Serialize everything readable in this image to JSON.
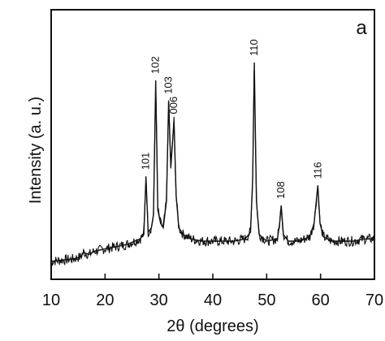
{
  "chart_data": {
    "type": "line",
    "panel_label": "a",
    "xlabel": "2θ (degrees)",
    "ylabel": "Intensity (a. u.)",
    "xlim": [
      10,
      70
    ],
    "ylim": [
      0,
      100
    ],
    "x_ticks": [
      10,
      20,
      30,
      40,
      50,
      60,
      70
    ],
    "x_tick_labels": [
      "10",
      "20",
      "30",
      "40",
      "50",
      "60",
      "70"
    ],
    "y_ticks_shown": false,
    "grid": false,
    "line_color": "#111111",
    "peaks": [
      {
        "x": 27.6,
        "y": 41,
        "label": "101"
      },
      {
        "x": 29.4,
        "y": 84,
        "label": "102"
      },
      {
        "x": 31.8,
        "y": 75,
        "label": "103"
      },
      {
        "x": 32.8,
        "y": 66,
        "label": "006"
      },
      {
        "x": 47.7,
        "y": 92,
        "label": "110"
      },
      {
        "x": 52.7,
        "y": 28,
        "label": "108"
      },
      {
        "x": 59.5,
        "y": 37,
        "label": "116"
      }
    ],
    "series": [
      {
        "values_xy": [
          [
            10,
            3
          ],
          [
            12,
            3.5
          ],
          [
            14,
            4
          ],
          [
            15.5,
            5
          ],
          [
            16,
            7
          ],
          [
            17,
            6
          ],
          [
            18,
            7.5
          ],
          [
            20,
            8.5
          ],
          [
            22,
            9.5
          ],
          [
            24,
            10.5
          ],
          [
            25.5,
            12
          ],
          [
            26.5,
            13
          ],
          [
            27.2,
            15
          ],
          [
            27.6,
            41
          ],
          [
            28.0,
            16
          ],
          [
            28.6,
            18
          ],
          [
            29.0,
            24
          ],
          [
            29.4,
            84
          ],
          [
            29.8,
            26
          ],
          [
            30.3,
            20
          ],
          [
            30.8,
            18
          ],
          [
            31.4,
            30
          ],
          [
            31.8,
            75
          ],
          [
            32.2,
            45
          ],
          [
            32.8,
            66
          ],
          [
            33.2,
            32
          ],
          [
            33.7,
            18
          ],
          [
            34.5,
            15
          ],
          [
            36,
            13
          ],
          [
            38,
            12
          ],
          [
            40,
            12
          ],
          [
            42,
            12
          ],
          [
            44,
            12
          ],
          [
            46,
            13
          ],
          [
            47.0,
            16
          ],
          [
            47.4,
            40
          ],
          [
            47.7,
            92
          ],
          [
            48.1,
            30
          ],
          [
            48.6,
            15
          ],
          [
            50,
            12
          ],
          [
            52.0,
            13
          ],
          [
            52.4,
            20
          ],
          [
            52.7,
            28
          ],
          [
            53.1,
            15
          ],
          [
            54,
            12
          ],
          [
            56,
            12
          ],
          [
            58,
            14
          ],
          [
            58.8,
            20
          ],
          [
            59.2,
            30
          ],
          [
            59.5,
            37
          ],
          [
            59.9,
            20
          ],
          [
            60.5,
            14
          ],
          [
            62,
            12
          ],
          [
            64,
            12
          ],
          [
            66,
            12
          ],
          [
            68,
            13
          ],
          [
            70,
            13
          ]
        ]
      }
    ]
  }
}
